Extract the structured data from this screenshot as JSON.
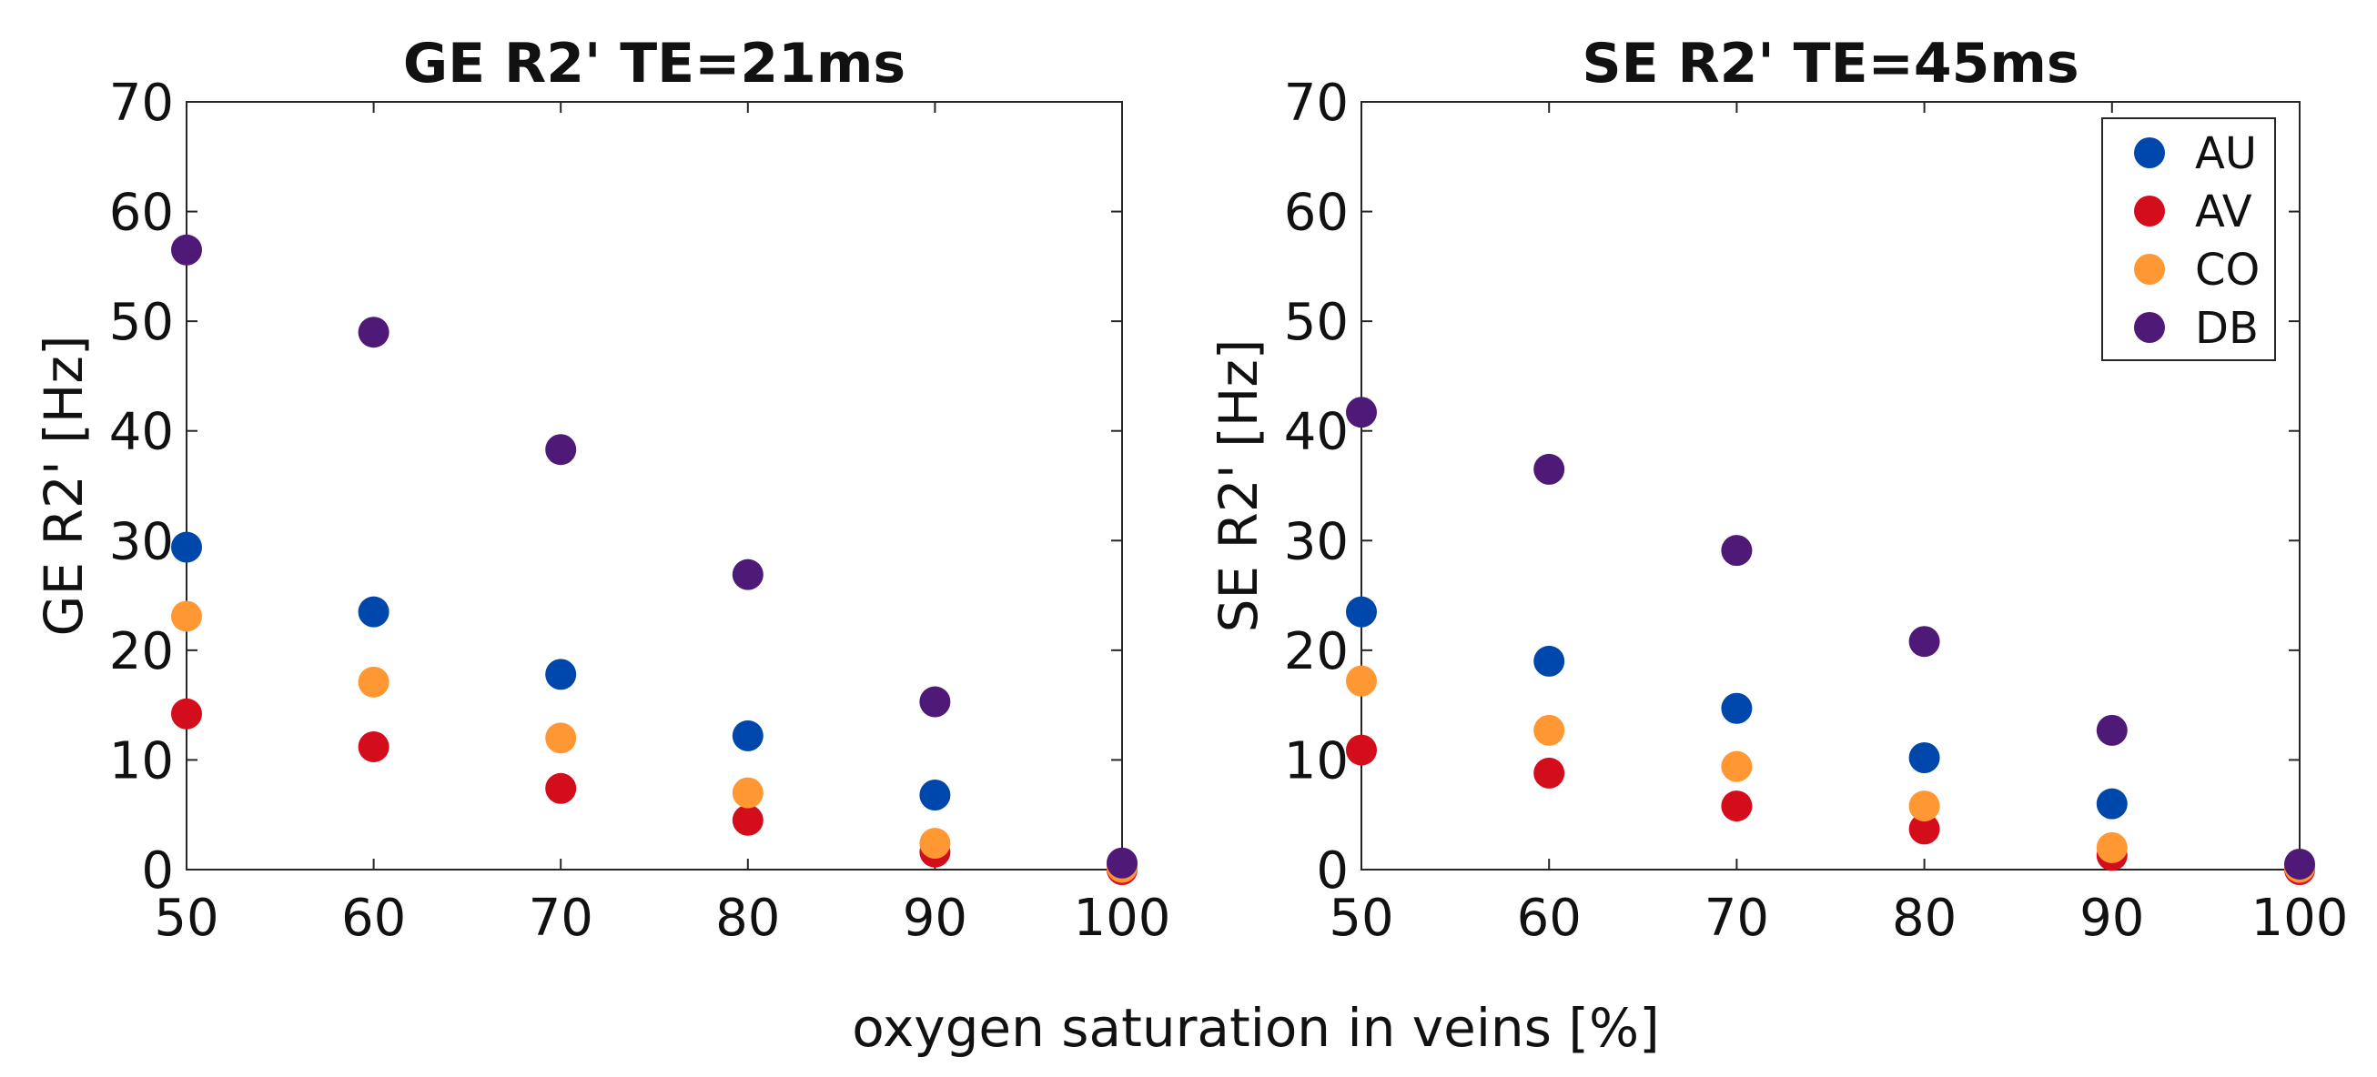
{
  "figure": {
    "shared_xlabel": "oxygen saturation in veins [%]"
  },
  "chart_data": [
    {
      "type": "scatter",
      "title": "GE R2' TE=21ms",
      "xlabel": "oxygen saturation in veins [%]",
      "ylabel": "GE R2' [Hz]",
      "xlim": [
        50,
        100
      ],
      "ylim": [
        0,
        70
      ],
      "xticks": [
        50,
        60,
        70,
        80,
        90,
        100
      ],
      "yticks": [
        0,
        10,
        20,
        30,
        40,
        50,
        60,
        70
      ],
      "legend": false,
      "x": [
        50,
        60,
        70,
        80,
        90,
        100
      ],
      "series": [
        {
          "name": "AU",
          "color": "#0047ab",
          "values": [
            29.4,
            23.5,
            17.8,
            12.2,
            6.8,
            0.3
          ]
        },
        {
          "name": "AV",
          "color": "#d40d1d",
          "values": [
            14.2,
            11.2,
            7.4,
            4.5,
            1.6,
            0.0
          ]
        },
        {
          "name": "CO",
          "color": "#ff9733",
          "values": [
            23.1,
            17.1,
            12.0,
            7.0,
            2.4,
            0.2
          ]
        },
        {
          "name": "DB",
          "color": "#4f1a77",
          "values": [
            56.5,
            49.0,
            38.3,
            26.9,
            15.3,
            0.6
          ]
        }
      ]
    },
    {
      "type": "scatter",
      "title": "SE R2' TE=45ms",
      "xlabel": "oxygen saturation in veins [%]",
      "ylabel": "SE R2' [Hz]",
      "xlim": [
        50,
        100
      ],
      "ylim": [
        0,
        70
      ],
      "xticks": [
        50,
        60,
        70,
        80,
        90,
        100
      ],
      "yticks": [
        0,
        10,
        20,
        30,
        40,
        50,
        60,
        70
      ],
      "legend": true,
      "legend_position": "top-right",
      "x": [
        50,
        60,
        70,
        80,
        90,
        100
      ],
      "series": [
        {
          "name": "AU",
          "color": "#0047ab",
          "values": [
            23.5,
            19.0,
            14.7,
            10.2,
            6.0,
            0.3
          ]
        },
        {
          "name": "AV",
          "color": "#d40d1d",
          "values": [
            10.9,
            8.8,
            5.8,
            3.7,
            1.3,
            0.0
          ]
        },
        {
          "name": "CO",
          "color": "#ff9733",
          "values": [
            17.2,
            12.7,
            9.4,
            5.8,
            2.0,
            0.2
          ]
        },
        {
          "name": "DB",
          "color": "#4f1a77",
          "values": [
            41.7,
            36.5,
            29.1,
            20.8,
            12.7,
            0.5
          ]
        }
      ]
    }
  ]
}
